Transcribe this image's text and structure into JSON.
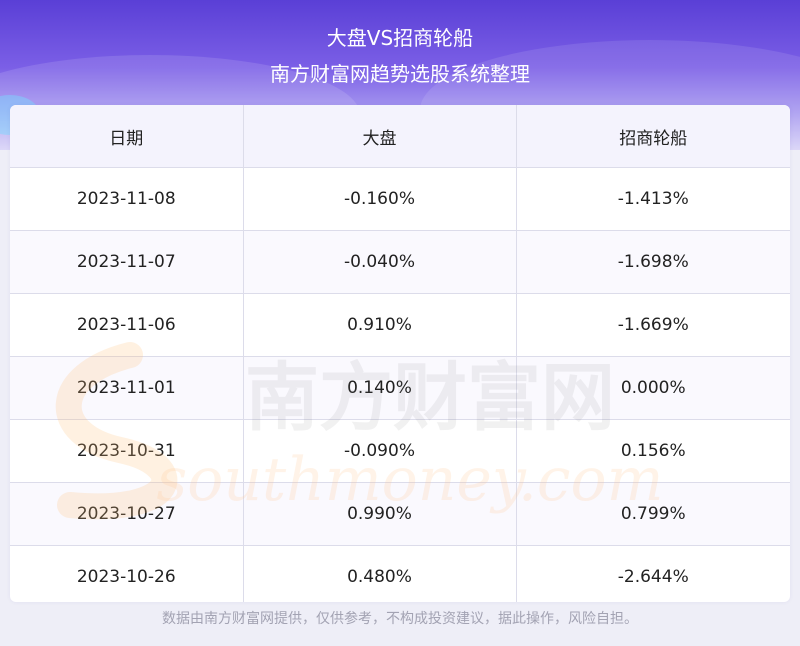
{
  "header": {
    "title": "大盘VS招商轮船",
    "subtitle": "南方财富网趋势选股系统整理"
  },
  "table": {
    "columns": [
      "日期",
      "大盘",
      "招商轮船"
    ],
    "rows": [
      [
        "2023-11-08",
        "-0.160%",
        "-1.413%"
      ],
      [
        "2023-11-07",
        "-0.040%",
        "-1.698%"
      ],
      [
        "2023-11-06",
        "0.910%",
        "-1.669%"
      ],
      [
        "2023-11-01",
        "0.140%",
        "0.000%"
      ],
      [
        "2023-10-31",
        "-0.090%",
        "0.156%"
      ],
      [
        "2023-10-27",
        "0.990%",
        "0.799%"
      ],
      [
        "2023-10-26",
        "0.480%",
        "-2.644%"
      ]
    ]
  },
  "watermark": {
    "cn": "南方财富网",
    "en": "southmoney.com"
  },
  "footer": {
    "disclaimer": "数据由南方财富网提供，仅供参考，不构成投资建议，据此操作，风险自担。"
  }
}
